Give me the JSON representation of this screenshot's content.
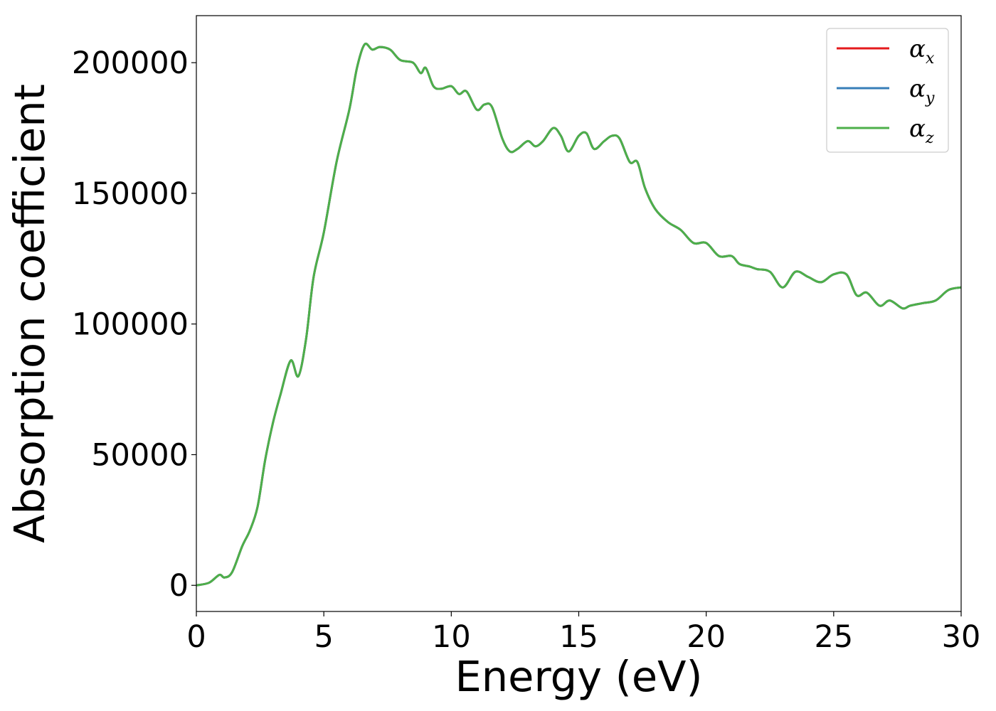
{
  "chart_data": {
    "type": "line",
    "xlabel": "Energy (eV)",
    "ylabel": "Absorption coefficient",
    "xlim": [
      0,
      30
    ],
    "ylim": [
      -10000,
      218000
    ],
    "xticks": [
      0,
      5,
      10,
      15,
      20,
      25,
      30
    ],
    "yticks": [
      0,
      50000,
      100000,
      150000,
      200000
    ],
    "xtick_labels": [
      "0",
      "5",
      "10",
      "15",
      "20",
      "25",
      "30"
    ],
    "ytick_labels": [
      "0",
      "50000",
      "100000",
      "150000",
      "200000"
    ],
    "grid": false,
    "legend_position": "top-right",
    "x": [
      0,
      0.5,
      0.9,
      1.1,
      1.4,
      1.8,
      2.1,
      2.4,
      2.7,
      3.0,
      3.3,
      3.7,
      4.0,
      4.3,
      4.6,
      5.0,
      5.5,
      6.0,
      6.3,
      6.6,
      6.9,
      7.2,
      7.6,
      8.0,
      8.5,
      8.8,
      9.0,
      9.3,
      9.6,
      10.0,
      10.3,
      10.6,
      11.0,
      11.3,
      11.6,
      12.0,
      12.3,
      12.6,
      13.0,
      13.3,
      13.6,
      14.0,
      14.3,
      14.6,
      15.0,
      15.3,
      15.6,
      16.0,
      16.3,
      16.6,
      17.0,
      17.3,
      17.6,
      18.0,
      18.5,
      19.0,
      19.5,
      20.0,
      20.5,
      21.0,
      21.3,
      21.7,
      22.0,
      22.5,
      23.0,
      23.5,
      24.0,
      24.5,
      25.0,
      25.5,
      25.9,
      26.3,
      26.8,
      27.2,
      27.7,
      28.0,
      28.5,
      29.0,
      29.5,
      30.0
    ],
    "series": [
      {
        "name": "α_x",
        "color": "#e41a1c",
        "values": [
          0,
          1000,
          4000,
          3000,
          5000,
          15000,
          21000,
          30000,
          48000,
          62000,
          73000,
          86000,
          80000,
          94000,
          118000,
          135000,
          162000,
          182000,
          198000,
          207000,
          205000,
          206000,
          205000,
          201000,
          200000,
          196000,
          198000,
          191000,
          190000,
          191000,
          188000,
          189000,
          182000,
          184000,
          183000,
          171000,
          166000,
          167000,
          170000,
          168000,
          170000,
          175000,
          172000,
          166000,
          172000,
          173000,
          167000,
          170000,
          172000,
          171000,
          162000,
          162000,
          152000,
          144000,
          139000,
          136000,
          131000,
          131000,
          126000,
          126000,
          123000,
          122000,
          121000,
          120000,
          114000,
          120000,
          118000,
          116000,
          119000,
          119000,
          111000,
          112000,
          107000,
          109000,
          106000,
          107000,
          108000,
          109000,
          113000,
          114000
        ]
      },
      {
        "name": "α_y",
        "color": "#377eb8",
        "values": [
          0,
          1000,
          4000,
          3000,
          5000,
          15000,
          21000,
          30000,
          48000,
          62000,
          73000,
          86000,
          80000,
          94000,
          118000,
          135000,
          162000,
          182000,
          198000,
          207000,
          205000,
          206000,
          205000,
          201000,
          200000,
          196000,
          198000,
          191000,
          190000,
          191000,
          188000,
          189000,
          182000,
          184000,
          183000,
          171000,
          166000,
          167000,
          170000,
          168000,
          170000,
          175000,
          172000,
          166000,
          172000,
          173000,
          167000,
          170000,
          172000,
          171000,
          162000,
          162000,
          152000,
          144000,
          139000,
          136000,
          131000,
          131000,
          126000,
          126000,
          123000,
          122000,
          121000,
          120000,
          114000,
          120000,
          118000,
          116000,
          119000,
          119000,
          111000,
          112000,
          107000,
          109000,
          106000,
          107000,
          108000,
          109000,
          113000,
          114000
        ]
      },
      {
        "name": "α_z",
        "color": "#4daf4a",
        "values": [
          0,
          1000,
          4000,
          3000,
          5000,
          15000,
          21000,
          30000,
          48000,
          62000,
          73000,
          86000,
          80000,
          94000,
          118000,
          135000,
          162000,
          182000,
          198000,
          207000,
          205000,
          206000,
          205000,
          201000,
          200000,
          196000,
          198000,
          191000,
          190000,
          191000,
          188000,
          189000,
          182000,
          184000,
          183000,
          171000,
          166000,
          167000,
          170000,
          168000,
          170000,
          175000,
          172000,
          166000,
          172000,
          173000,
          167000,
          170000,
          172000,
          171000,
          162000,
          162000,
          152000,
          144000,
          139000,
          136000,
          131000,
          131000,
          126000,
          126000,
          123000,
          122000,
          121000,
          120000,
          114000,
          120000,
          118000,
          116000,
          119000,
          119000,
          111000,
          112000,
          107000,
          109000,
          106000,
          107000,
          108000,
          109000,
          113000,
          114000
        ]
      }
    ],
    "legend": [
      {
        "base": "α",
        "sub": "x",
        "color": "#e41a1c"
      },
      {
        "base": "α",
        "sub": "y",
        "color": "#377eb8"
      },
      {
        "base": "α",
        "sub": "z",
        "color": "#4daf4a"
      }
    ]
  }
}
